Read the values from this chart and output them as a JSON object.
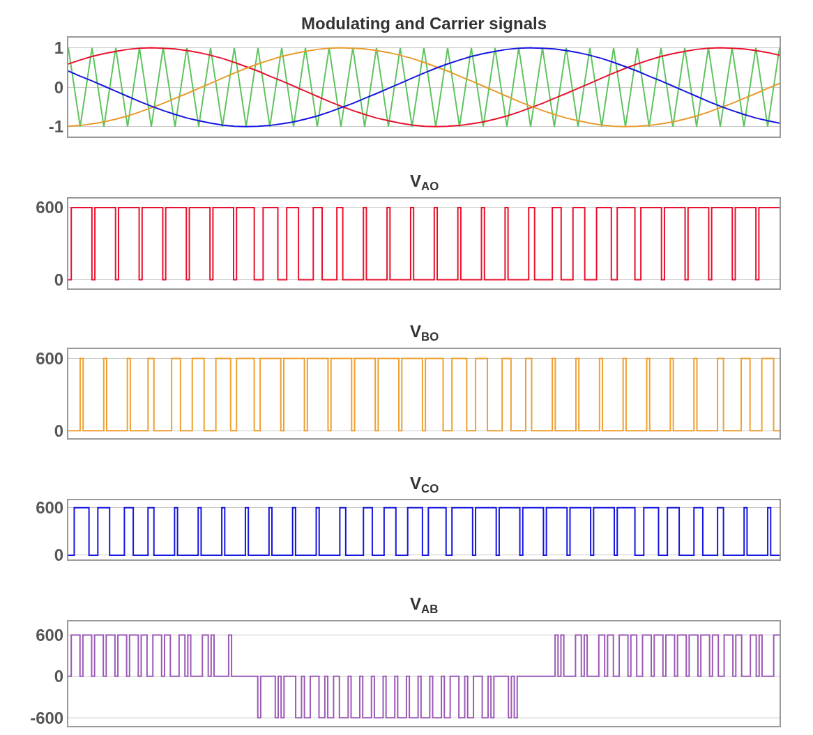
{
  "chart_data": [
    {
      "type": "line",
      "title": "Modulating and Carrier signals",
      "ylim": [
        -1.25,
        1.25
      ],
      "yticks": [
        -1,
        0,
        1
      ],
      "grid": "y",
      "tick_labels": "y",
      "categories": [
        null,
        null,
        null,
        null,
        null,
        null,
        null,
        null,
        null,
        null,
        null,
        null,
        null,
        null,
        null,
        null,
        null,
        null,
        null,
        null,
        null,
        null,
        null,
        null,
        null,
        null,
        null,
        null,
        null,
        null,
        null,
        null,
        null,
        null,
        null,
        null,
        null,
        null,
        null,
        null,
        null,
        null,
        null,
        null,
        null,
        null,
        null,
        null,
        null,
        null,
        null,
        null,
        null,
        null,
        null,
        null,
        null,
        null,
        null,
        null,
        null
      ],
      "series": [
        {
          "color": "#5ec45e",
          "values": [
            1,
            -1,
            1,
            -1,
            1,
            -1,
            1,
            -1,
            1,
            -1,
            1,
            -1,
            1,
            -1,
            1,
            -1,
            1,
            -1,
            1,
            -1,
            1,
            -1,
            1,
            -1,
            1,
            -1,
            1,
            -1,
            1,
            -1,
            1,
            -1,
            1,
            -1,
            1,
            -1,
            1,
            -1,
            1,
            -1,
            1,
            -1,
            1,
            -1,
            1,
            -1,
            1,
            -1,
            1,
            -1,
            1,
            -1,
            1,
            -1,
            1,
            -1,
            1,
            -1,
            1,
            -1,
            1
          ]
        },
        {
          "color": "#e8112d",
          "values": [
            0.59,
            0.69,
            0.78,
            0.85,
            0.91,
            0.96,
            0.99,
            1,
            0.99,
            0.97,
            0.93,
            0.88,
            0.81,
            0.73,
            0.63,
            0.52,
            0.41,
            0.28,
            0.16,
            0.03,
            -0.1,
            -0.23,
            -0.36,
            -0.48,
            -0.59,
            -0.69,
            -0.78,
            -0.85,
            -0.91,
            -0.96,
            -0.99,
            -1,
            -0.99,
            -0.97,
            -0.93,
            -0.88,
            -0.81,
            -0.73,
            -0.63,
            -0.52,
            -0.41,
            -0.28,
            -0.16,
            -0.03,
            0.1,
            0.23,
            0.36,
            0.48,
            0.59,
            0.69,
            0.78,
            0.85,
            0.91,
            0.96,
            0.99,
            1,
            0.99,
            0.97,
            0.93,
            0.88,
            0.81
          ]
        },
        {
          "color": "#e89a2c",
          "values": [
            -0.99,
            -0.97,
            -0.93,
            -0.88,
            -0.81,
            -0.73,
            -0.63,
            -0.52,
            -0.41,
            -0.28,
            -0.16,
            -0.03,
            0.1,
            0.23,
            0.36,
            0.48,
            0.59,
            0.69,
            0.78,
            0.85,
            0.91,
            0.96,
            0.99,
            1,
            0.99,
            0.97,
            0.93,
            0.88,
            0.81,
            0.73,
            0.63,
            0.52,
            0.41,
            0.28,
            0.16,
            0.03,
            -0.1,
            -0.23,
            -0.36,
            -0.48,
            -0.59,
            -0.69,
            -0.78,
            -0.85,
            -0.91,
            -0.96,
            -0.99,
            -1,
            -0.99,
            -0.97,
            -0.93,
            -0.88,
            -0.81,
            -0.73,
            -0.63,
            -0.52,
            -0.41,
            -0.28,
            -0.16,
            -0.03,
            0.1
          ]
        },
        {
          "color": "#1515e0",
          "values": [
            0.41,
            0.28,
            0.16,
            0.03,
            -0.1,
            -0.23,
            -0.36,
            -0.48,
            -0.59,
            -0.69,
            -0.78,
            -0.85,
            -0.91,
            -0.96,
            -0.99,
            -1,
            -0.99,
            -0.97,
            -0.93,
            -0.88,
            -0.81,
            -0.73,
            -0.63,
            -0.52,
            -0.41,
            -0.28,
            -0.16,
            -0.03,
            0.1,
            0.23,
            0.36,
            0.48,
            0.59,
            0.69,
            0.78,
            0.85,
            0.91,
            0.96,
            0.99,
            1,
            0.99,
            0.97,
            0.93,
            0.88,
            0.81,
            0.73,
            0.63,
            0.52,
            0.41,
            0.28,
            0.16,
            0.03,
            -0.1,
            -0.23,
            -0.36,
            -0.48,
            -0.59,
            -0.69,
            -0.78,
            -0.85,
            -0.91
          ]
        }
      ]
    },
    {
      "type": "step",
      "title": "V$_{AO}$",
      "ylim": [
        -70,
        675
      ],
      "yticks": [
        0,
        600
      ],
      "grid": "y",
      "tick_labels": "y",
      "categories": [
        null,
        null,
        null,
        null,
        null,
        null,
        null,
        null,
        null,
        null,
        null,
        null,
        null,
        null,
        null,
        null,
        null,
        null,
        null,
        null,
        null,
        null,
        null,
        null,
        null,
        null,
        null,
        null,
        null,
        null,
        null,
        null,
        null,
        null,
        null,
        null,
        null,
        null,
        null,
        null,
        null,
        null,
        null,
        null,
        null,
        null,
        null,
        null,
        null,
        null,
        null,
        null,
        null,
        null,
        null,
        null,
        null,
        null,
        null,
        null,
        null,
        null,
        null,
        null,
        null,
        null,
        null,
        null,
        null,
        null,
        null,
        null,
        null,
        null,
        null,
        null,
        null,
        null,
        null,
        null,
        null,
        null,
        null,
        null,
        null,
        null,
        null,
        null,
        null,
        null,
        null,
        null,
        null,
        null,
        null,
        null,
        null,
        null,
        null,
        null,
        null,
        null,
        null,
        null,
        null,
        null,
        null,
        null,
        null,
        null,
        null,
        null,
        null,
        null,
        null,
        null,
        null,
        null,
        null,
        null,
        null,
        null,
        null,
        null,
        null,
        null,
        null,
        null,
        null,
        null,
        null,
        null,
        null,
        null,
        null,
        null,
        null,
        null,
        null,
        null,
        null,
        null,
        null,
        null,
        null,
        null,
        null,
        null,
        null,
        null,
        null,
        null,
        null,
        null,
        null,
        null,
        null,
        null,
        null,
        null,
        null,
        null,
        null,
        null,
        null,
        null,
        null,
        null,
        null,
        null,
        null,
        null,
        null,
        null,
        null,
        null,
        null,
        null,
        null,
        null,
        null,
        null,
        null,
        null,
        null,
        null,
        null,
        null,
        null,
        null,
        null,
        null,
        null,
        null,
        null,
        null,
        null,
        null,
        null,
        null,
        null,
        null,
        null,
        null,
        null,
        null,
        null,
        null,
        null,
        null,
        null,
        null,
        null,
        null,
        null,
        null,
        null,
        null,
        null,
        null,
        null,
        null,
        null,
        null,
        null,
        null,
        null,
        null,
        null,
        null,
        null,
        null,
        null,
        null,
        null,
        null,
        null,
        null,
        null,
        null,
        null,
        null
      ],
      "series": [
        {
          "color": "#e8112d",
          "values": [
            0,
            600,
            600,
            600,
            600,
            600,
            600,
            600,
            0,
            600,
            600,
            600,
            600,
            600,
            600,
            600,
            0,
            600,
            600,
            600,
            600,
            600,
            600,
            600,
            0,
            600,
            600,
            600,
            600,
            600,
            600,
            600,
            0,
            600,
            600,
            600,
            600,
            600,
            600,
            600,
            0,
            600,
            600,
            600,
            600,
            600,
            600,
            600,
            0,
            600,
            600,
            600,
            600,
            600,
            600,
            600,
            0,
            600,
            600,
            600,
            600,
            600,
            600,
            0,
            0,
            0,
            600,
            600,
            600,
            600,
            600,
            0,
            0,
            0,
            600,
            600,
            600,
            600,
            0,
            0,
            0,
            0,
            0,
            600,
            600,
            600,
            0,
            0,
            0,
            0,
            0,
            600,
            600,
            0,
            0,
            0,
            0,
            0,
            0,
            0,
            600,
            0,
            0,
            0,
            0,
            0,
            0,
            0,
            600,
            0,
            0,
            0,
            0,
            0,
            0,
            0,
            600,
            0,
            0,
            0,
            0,
            0,
            0,
            0,
            600,
            0,
            0,
            0,
            0,
            0,
            0,
            0,
            600,
            0,
            0,
            0,
            0,
            0,
            0,
            0,
            600,
            0,
            0,
            0,
            0,
            0,
            0,
            0,
            600,
            0,
            0,
            0,
            0,
            0,
            0,
            0,
            600,
            600,
            0,
            0,
            0,
            0,
            0,
            0,
            600,
            600,
            600,
            0,
            0,
            0,
            0,
            600,
            600,
            600,
            600,
            0,
            0,
            0,
            0,
            600,
            600,
            600,
            600,
            600,
            0,
            0,
            600,
            600,
            600,
            600,
            600,
            600,
            0,
            0,
            600,
            600,
            600,
            600,
            600,
            600,
            600,
            0,
            600,
            600,
            600,
            600,
            600,
            600,
            600,
            0,
            600,
            600,
            600,
            600,
            600,
            600,
            600,
            0,
            600,
            600,
            600,
            600,
            600,
            600,
            600,
            0,
            600,
            600,
            600,
            600,
            600,
            600,
            600,
            0,
            600,
            600,
            600,
            600,
            600,
            600,
            600,
            600
          ]
        }
      ]
    },
    {
      "type": "step",
      "title": "V$_{BO}$",
      "ylim": [
        -65,
        680
      ],
      "yticks": [
        0,
        600
      ],
      "grid": "y",
      "tick_labels": "y",
      "categories": [
        null,
        null,
        null,
        null,
        null,
        null,
        null,
        null,
        null,
        null,
        null,
        null,
        null,
        null,
        null,
        null,
        null,
        null,
        null,
        null,
        null,
        null,
        null,
        null,
        null,
        null,
        null,
        null,
        null,
        null,
        null,
        null,
        null,
        null,
        null,
        null,
        null,
        null,
        null,
        null,
        null,
        null,
        null,
        null,
        null,
        null,
        null,
        null,
        null,
        null,
        null,
        null,
        null,
        null,
        null,
        null,
        null,
        null,
        null,
        null,
        null,
        null,
        null,
        null,
        null,
        null,
        null,
        null,
        null,
        null,
        null,
        null,
        null,
        null,
        null,
        null,
        null,
        null,
        null,
        null,
        null,
        null,
        null,
        null,
        null,
        null,
        null,
        null,
        null,
        null,
        null,
        null,
        null,
        null,
        null,
        null,
        null,
        null,
        null,
        null,
        null,
        null,
        null,
        null,
        null,
        null,
        null,
        null,
        null,
        null,
        null,
        null,
        null,
        null,
        null,
        null,
        null,
        null,
        null,
        null,
        null,
        null,
        null,
        null,
        null,
        null,
        null,
        null,
        null,
        null,
        null,
        null,
        null,
        null,
        null,
        null,
        null,
        null,
        null,
        null,
        null,
        null,
        null,
        null,
        null,
        null,
        null,
        null,
        null,
        null,
        null,
        null,
        null,
        null,
        null,
        null,
        null,
        null,
        null,
        null,
        null,
        null,
        null,
        null,
        null,
        null,
        null,
        null,
        null,
        null,
        null,
        null,
        null,
        null,
        null,
        null,
        null,
        null,
        null,
        null,
        null,
        null,
        null,
        null,
        null,
        null,
        null,
        null,
        null,
        null,
        null,
        null,
        null,
        null,
        null,
        null,
        null,
        null,
        null,
        null,
        null,
        null,
        null,
        null,
        null,
        null,
        null,
        null,
        null,
        null,
        null,
        null,
        null,
        null,
        null,
        null,
        null,
        null,
        null,
        null,
        null,
        null,
        null,
        null,
        null,
        null,
        null,
        null,
        null,
        null,
        null,
        null,
        null,
        null,
        null,
        null,
        null,
        null,
        null,
        null,
        null,
        null
      ],
      "series": [
        {
          "color": "#f0a030",
          "values": [
            0,
            0,
            0,
            0,
            600,
            0,
            0,
            0,
            0,
            0,
            0,
            0,
            600,
            0,
            0,
            0,
            0,
            0,
            0,
            0,
            600,
            0,
            0,
            0,
            0,
            0,
            0,
            600,
            600,
            0,
            0,
            0,
            0,
            0,
            0,
            600,
            600,
            600,
            0,
            0,
            0,
            0,
            600,
            600,
            600,
            600,
            0,
            0,
            0,
            0,
            600,
            600,
            600,
            600,
            600,
            0,
            0,
            600,
            600,
            600,
            600,
            600,
            600,
            0,
            0,
            600,
            600,
            600,
            600,
            600,
            600,
            600,
            0,
            600,
            600,
            600,
            600,
            600,
            600,
            600,
            0,
            600,
            600,
            600,
            600,
            600,
            600,
            600,
            0,
            600,
            600,
            600,
            600,
            600,
            600,
            600,
            0,
            600,
            600,
            600,
            600,
            600,
            600,
            600,
            0,
            600,
            600,
            600,
            600,
            600,
            600,
            600,
            0,
            600,
            600,
            600,
            600,
            600,
            600,
            600,
            0,
            600,
            600,
            600,
            600,
            600,
            600,
            0,
            0,
            0,
            600,
            600,
            600,
            600,
            600,
            0,
            0,
            0,
            600,
            600,
            600,
            600,
            0,
            0,
            0,
            0,
            0,
            600,
            600,
            600,
            0,
            0,
            0,
            0,
            0,
            600,
            600,
            0,
            0,
            0,
            0,
            0,
            0,
            0,
            600,
            0,
            0,
            0,
            0,
            0,
            0,
            0,
            600,
            0,
            0,
            0,
            0,
            0,
            0,
            0,
            600,
            0,
            0,
            0,
            0,
            0,
            0,
            0,
            600,
            0,
            0,
            0,
            0,
            0,
            0,
            0,
            600,
            0,
            0,
            0,
            0,
            0,
            0,
            0,
            600,
            0,
            0,
            0,
            0,
            0,
            0,
            0,
            600,
            0,
            0,
            0,
            0,
            0,
            0,
            0,
            600,
            600,
            0,
            0,
            0,
            0,
            0,
            0,
            600,
            600,
            600,
            0,
            0,
            0,
            0,
            600,
            600,
            600,
            600,
            0,
            0,
            0
          ]
        }
      ]
    },
    {
      "type": "step",
      "title": "V$_{CO}$",
      "ylim": [
        -50,
        690
      ],
      "yticks": [
        0,
        600
      ],
      "grid": "y",
      "tick_labels": "y",
      "categories": [
        null,
        null,
        null,
        null,
        null,
        null,
        null,
        null,
        null,
        null,
        null,
        null,
        null,
        null,
        null,
        null,
        null,
        null,
        null,
        null,
        null,
        null,
        null,
        null,
        null,
        null,
        null,
        null,
        null,
        null,
        null,
        null,
        null,
        null,
        null,
        null,
        null,
        null,
        null,
        null,
        null,
        null,
        null,
        null,
        null,
        null,
        null,
        null,
        null,
        null,
        null,
        null,
        null,
        null,
        null,
        null,
        null,
        null,
        null,
        null,
        null,
        null,
        null,
        null,
        null,
        null,
        null,
        null,
        null,
        null,
        null,
        null,
        null,
        null,
        null,
        null,
        null,
        null,
        null,
        null,
        null,
        null,
        null,
        null,
        null,
        null,
        null,
        null,
        null,
        null,
        null,
        null,
        null,
        null,
        null,
        null,
        null,
        null,
        null,
        null,
        null,
        null,
        null,
        null,
        null,
        null,
        null,
        null,
        null,
        null,
        null,
        null,
        null,
        null,
        null,
        null,
        null,
        null,
        null,
        null,
        null,
        null,
        null,
        null,
        null,
        null,
        null,
        null,
        null,
        null,
        null,
        null,
        null,
        null,
        null,
        null,
        null,
        null,
        null,
        null,
        null,
        null,
        null,
        null,
        null,
        null,
        null,
        null,
        null,
        null,
        null,
        null,
        null,
        null,
        null,
        null,
        null,
        null,
        null,
        null,
        null,
        null,
        null,
        null,
        null,
        null,
        null,
        null,
        null,
        null,
        null,
        null,
        null,
        null,
        null,
        null,
        null,
        null,
        null,
        null,
        null,
        null,
        null,
        null,
        null,
        null,
        null,
        null,
        null,
        null,
        null,
        null,
        null,
        null,
        null,
        null,
        null,
        null,
        null,
        null,
        null,
        null,
        null,
        null,
        null,
        null,
        null,
        null,
        null,
        null,
        null,
        null,
        null,
        null,
        null,
        null,
        null,
        null,
        null,
        null,
        null,
        null,
        null,
        null,
        null,
        null,
        null,
        null,
        null,
        null,
        null,
        null,
        null,
        null,
        null,
        null,
        null,
        null,
        null,
        null,
        null,
        null
      ],
      "series": [
        {
          "color": "#1515e0",
          "values": [
            0,
            0,
            600,
            600,
            600,
            600,
            600,
            0,
            0,
            0,
            600,
            600,
            600,
            600,
            0,
            0,
            0,
            0,
            0,
            600,
            600,
            600,
            0,
            0,
            0,
            0,
            0,
            600,
            600,
            0,
            0,
            0,
            0,
            0,
            0,
            0,
            600,
            0,
            0,
            0,
            0,
            0,
            0,
            0,
            600,
            0,
            0,
            0,
            0,
            0,
            0,
            0,
            600,
            0,
            0,
            0,
            0,
            0,
            0,
            0,
            600,
            0,
            0,
            0,
            0,
            0,
            0,
            0,
            600,
            0,
            0,
            0,
            0,
            0,
            0,
            0,
            600,
            0,
            0,
            0,
            0,
            0,
            0,
            0,
            600,
            0,
            0,
            0,
            0,
            0,
            0,
            0,
            600,
            600,
            0,
            0,
            0,
            0,
            0,
            0,
            600,
            600,
            600,
            0,
            0,
            0,
            0,
            600,
            600,
            600,
            600,
            0,
            0,
            0,
            0,
            600,
            600,
            600,
            600,
            600,
            0,
            0,
            600,
            600,
            600,
            600,
            600,
            600,
            0,
            0,
            600,
            600,
            600,
            600,
            600,
            600,
            600,
            0,
            600,
            600,
            600,
            600,
            600,
            600,
            600,
            0,
            600,
            600,
            600,
            600,
            600,
            600,
            600,
            0,
            600,
            600,
            600,
            600,
            600,
            600,
            600,
            0,
            600,
            600,
            600,
            600,
            600,
            600,
            600,
            0,
            600,
            600,
            600,
            600,
            600,
            600,
            600,
            0,
            600,
            600,
            600,
            600,
            600,
            600,
            600,
            0,
            600,
            600,
            600,
            600,
            600,
            600,
            0,
            0,
            0,
            600,
            600,
            600,
            600,
            600,
            0,
            0,
            0,
            600,
            600,
            600,
            600,
            0,
            0,
            0,
            0,
            0,
            600,
            600,
            600,
            0,
            0,
            0,
            0,
            0,
            600,
            600,
            0,
            0,
            0,
            0,
            0,
            0,
            0,
            600,
            0,
            0,
            0,
            0,
            0,
            0,
            0,
            600,
            0,
            0,
            0,
            0
          ]
        }
      ]
    },
    {
      "type": "step",
      "title": "V$_{AB}$",
      "ylim": [
        -720,
        800
      ],
      "yticks": [
        -600,
        0,
        600
      ],
      "grid": "y",
      "tick_labels": "y",
      "categories": [
        null,
        null,
        null,
        null,
        null,
        null,
        null,
        null,
        null,
        null,
        null,
        null,
        null,
        null,
        null,
        null,
        null,
        null,
        null,
        null,
        null,
        null,
        null,
        null,
        null,
        null,
        null,
        null,
        null,
        null,
        null,
        null,
        null,
        null,
        null,
        null,
        null,
        null,
        null,
        null,
        null,
        null,
        null,
        null,
        null,
        null,
        null,
        null,
        null,
        null,
        null,
        null,
        null,
        null,
        null,
        null,
        null,
        null,
        null,
        null,
        null,
        null,
        null,
        null,
        null,
        null,
        null,
        null,
        null,
        null,
        null,
        null,
        null,
        null,
        null,
        null,
        null,
        null,
        null,
        null,
        null,
        null,
        null,
        null,
        null,
        null,
        null,
        null,
        null,
        null,
        null,
        null,
        null,
        null,
        null,
        null,
        null,
        null,
        null,
        null,
        null,
        null,
        null,
        null,
        null,
        null,
        null,
        null,
        null,
        null,
        null,
        null,
        null,
        null,
        null,
        null,
        null,
        null,
        null,
        null,
        null,
        null,
        null,
        null,
        null,
        null,
        null,
        null,
        null,
        null,
        null,
        null,
        null,
        null,
        null,
        null,
        null,
        null,
        null,
        null,
        null,
        null,
        null,
        null,
        null,
        null,
        null,
        null,
        null,
        null,
        null,
        null,
        null,
        null,
        null,
        null,
        null,
        null,
        null,
        null,
        null,
        null,
        null,
        null,
        null,
        null,
        null,
        null,
        null,
        null,
        null,
        null,
        null,
        null,
        null,
        null,
        null,
        null,
        null,
        null,
        null,
        null,
        null,
        null,
        null,
        null,
        null,
        null,
        null,
        null,
        null,
        null,
        null,
        null,
        null,
        null,
        null,
        null,
        null,
        null,
        null,
        null,
        null,
        null,
        null,
        null,
        null,
        null,
        null,
        null,
        null,
        null,
        null,
        null,
        null,
        null,
        null,
        null,
        null,
        null,
        null,
        null,
        null,
        null,
        null,
        null,
        null,
        null,
        null,
        null,
        null,
        null,
        null,
        null,
        null,
        null,
        null,
        null,
        null,
        null,
        null,
        null,
        null,
        null,
        null
      ],
      "series": [
        {
          "color": "#9b59b6",
          "values": [
            0,
            600,
            600,
            600,
            0,
            600,
            600,
            600,
            0,
            600,
            600,
            600,
            0,
            600,
            600,
            600,
            0,
            600,
            600,
            600,
            0,
            600,
            600,
            600,
            0,
            600,
            600,
            0,
            0,
            600,
            600,
            600,
            0,
            600,
            600,
            0,
            0,
            0,
            600,
            600,
            0,
            600,
            0,
            0,
            0,
            0,
            600,
            600,
            0,
            600,
            0,
            0,
            0,
            0,
            0,
            600,
            0,
            0,
            0,
            0,
            0,
            0,
            0,
            0,
            0,
            -600,
            0,
            0,
            0,
            0,
            0,
            -600,
            0,
            -600,
            0,
            0,
            0,
            0,
            -600,
            -600,
            0,
            -600,
            -600,
            0,
            0,
            0,
            -600,
            -600,
            0,
            -600,
            -600,
            0,
            0,
            -600,
            -600,
            -600,
            0,
            -600,
            -600,
            -600,
            0,
            -600,
            -600,
            -600,
            0,
            -600,
            -600,
            -600,
            0,
            -600,
            -600,
            -600,
            0,
            -600,
            -600,
            -600,
            0,
            -600,
            -600,
            -600,
            0,
            -600,
            -600,
            -600,
            0,
            -600,
            -600,
            -600,
            0,
            -600,
            -600,
            0,
            0,
            0,
            -600,
            -600,
            0,
            -600,
            -600,
            0,
            0,
            0,
            -600,
            -600,
            0,
            -600,
            0,
            0,
            0,
            0,
            0,
            -600,
            0,
            -600,
            0,
            0,
            0,
            0,
            0,
            0,
            0,
            0,
            0,
            0,
            0,
            0,
            0,
            600,
            0,
            600,
            0,
            0,
            0,
            0,
            600,
            600,
            0,
            600,
            0,
            0,
            0,
            0,
            600,
            600,
            0,
            600,
            600,
            0,
            0,
            600,
            600,
            600,
            0,
            600,
            600,
            0,
            0,
            600,
            600,
            600,
            0,
            600,
            600,
            600,
            0,
            600,
            600,
            600,
            0,
            600,
            600,
            600,
            0,
            600,
            600,
            600,
            0,
            600,
            600,
            600,
            0,
            600,
            600,
            0,
            0,
            600,
            600,
            600,
            0,
            600,
            600,
            0,
            0,
            0,
            600,
            600,
            0,
            600,
            0,
            0,
            0,
            0,
            600,
            600,
            600
          ]
        }
      ]
    }
  ]
}
